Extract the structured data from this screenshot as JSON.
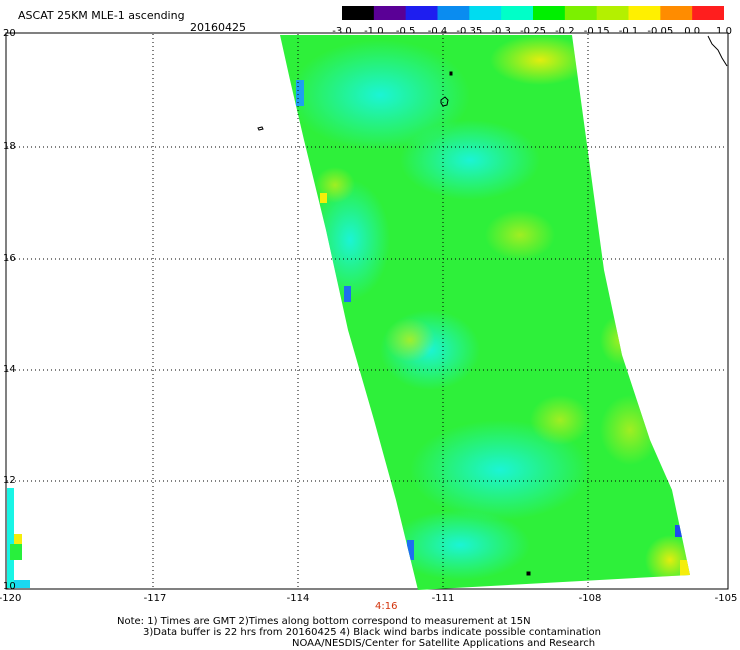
{
  "header": {
    "title": "ASCAT 25KM MLE-1 ascending",
    "date": "20160425"
  },
  "colorbar": {
    "labels": [
      "-3.0",
      "-1.0",
      "-0.5",
      "-0.4",
      "-0.35",
      "-0.3",
      "-0.25",
      "-0.2",
      "-0.15",
      "-0.1",
      "-0.05",
      "0.0",
      "1.0"
    ],
    "colors": [
      "#000000",
      "#5a0096",
      "#1e1ef0",
      "#0a8cf0",
      "#00dcf0",
      "#00ffc8",
      "#00f000",
      "#7cf000",
      "#b4f000",
      "#fff000",
      "#ff8c00",
      "#ff1e1e"
    ]
  },
  "map": {
    "lat_labels": [
      "20",
      "18",
      "16",
      "14",
      "12",
      "10"
    ],
    "lon_labels": [
      "-120",
      "-117",
      "-114",
      "-111",
      "-108",
      "-105"
    ],
    "grid": true,
    "swath_colors": {
      "cyan": "#19f5e6",
      "aqua": "#1ef0d2",
      "green": "#28f03c",
      "lime": "#64f01e",
      "yellowgreen": "#b4ee1e",
      "yellow": "#f5ee0a",
      "blue": "#1e6ef0"
    }
  },
  "footer": {
    "time": "4:16",
    "notes": [
      "Note: 1) Times are GMT 2)Times along bottom correspond to measurement at 15N",
      "3)Data buffer is 22 hrs from 20160425 4) Black wind barbs indicate possible contamination",
      "NOAA/NESDIS/Center for Satellite Applications and Research"
    ]
  }
}
